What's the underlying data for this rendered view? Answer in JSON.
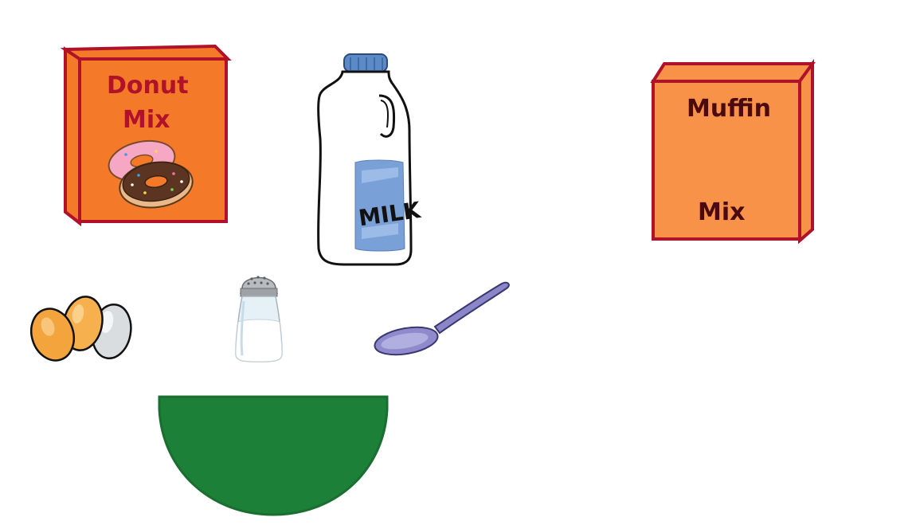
{
  "scene": {
    "background_color": "#ffffff"
  },
  "donut_mix": {
    "line1": "Donut",
    "line2": "Mix",
    "box_color": "#f47a2a",
    "border_color": "#b0122a",
    "text_color": "#b0122a"
  },
  "muffin_mix": {
    "line1": "Muffin",
    "line2": "Mix",
    "box_color": "#f99249",
    "border_color": "#b0122a",
    "text_color": "#4a0a10"
  },
  "milk": {
    "label": "MILK",
    "cap_color": "#5b8ac9",
    "label_color": "#7aa0d8"
  },
  "bowl": {
    "color": "#1c8039"
  },
  "icons": [
    "donut-mix-box",
    "milk-jug",
    "muffin-mix-box",
    "eggs",
    "salt-shaker",
    "spoon",
    "mixing-bowl"
  ]
}
